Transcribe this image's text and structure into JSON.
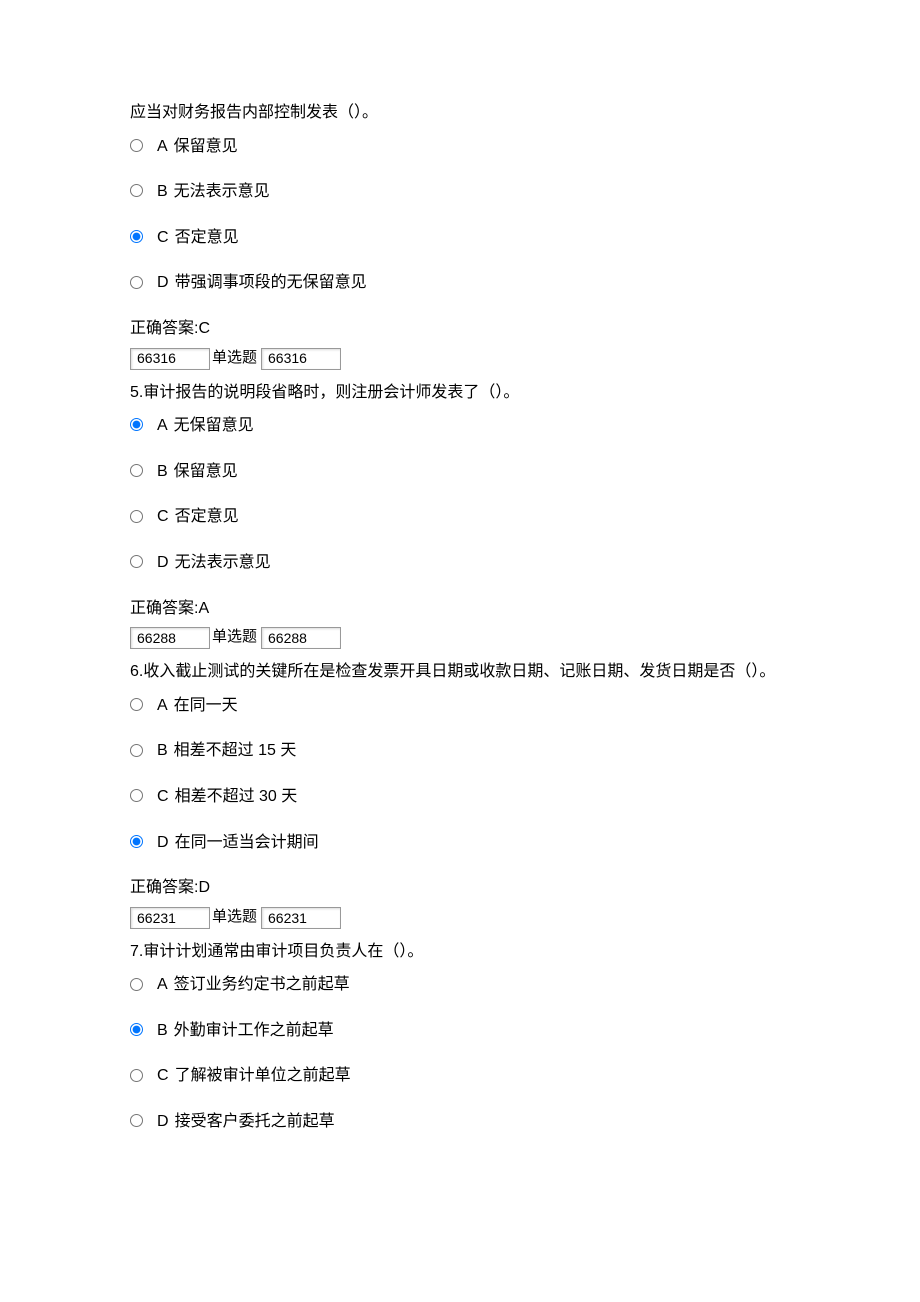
{
  "questions": [
    {
      "stem": "应当对财务报告内部控制发表（）。",
      "options": [
        {
          "letter": "A",
          "text": "保留意见",
          "selected": false
        },
        {
          "letter": "B",
          "text": "无法表示意见",
          "selected": false
        },
        {
          "letter": "C",
          "text": "否定意见",
          "selected": true
        },
        {
          "letter": "D",
          "text": "带强调事项段的无保留意见",
          "selected": false
        }
      ],
      "answer_label": "正确答案:C",
      "id1": "66316",
      "type_label": "单选题",
      "id2": "66316"
    },
    {
      "stem": "5.审计报告的说明段省略时，则注册会计师发表了（）。",
      "options": [
        {
          "letter": "A",
          "text": "无保留意见",
          "selected": true
        },
        {
          "letter": "B",
          "text": "保留意见",
          "selected": false
        },
        {
          "letter": "C",
          "text": "否定意见",
          "selected": false
        },
        {
          "letter": "D",
          "text": "无法表示意见",
          "selected": false
        }
      ],
      "answer_label": "正确答案:A",
      "id1": "66288",
      "type_label": "单选题",
      "id2": "66288"
    },
    {
      "stem": "6.收入截止测试的关键所在是检查发票开具日期或收款日期、记账日期、发货日期是否（）。",
      "options": [
        {
          "letter": "A",
          "text": "在同一天",
          "selected": false
        },
        {
          "letter": "B",
          "text": "相差不超过 15 天",
          "selected": false
        },
        {
          "letter": "C",
          "text": "相差不超过 30 天",
          "selected": false
        },
        {
          "letter": "D",
          "text": "在同一适当会计期间",
          "selected": true
        }
      ],
      "answer_label": "正确答案:D",
      "id1": "66231",
      "type_label": "单选题",
      "id2": "66231"
    },
    {
      "stem": "7.审计计划通常由审计项目负责人在（）。",
      "options": [
        {
          "letter": "A",
          "text": "签订业务约定书之前起草",
          "selected": false
        },
        {
          "letter": "B",
          "text": "外勤审计工作之前起草",
          "selected": true
        },
        {
          "letter": "C",
          "text": "了解被审计单位之前起草",
          "selected": false
        },
        {
          "letter": "D",
          "text": "接受客户委托之前起草",
          "selected": false
        }
      ],
      "answer_label": null,
      "id1": null,
      "type_label": null,
      "id2": null
    }
  ]
}
